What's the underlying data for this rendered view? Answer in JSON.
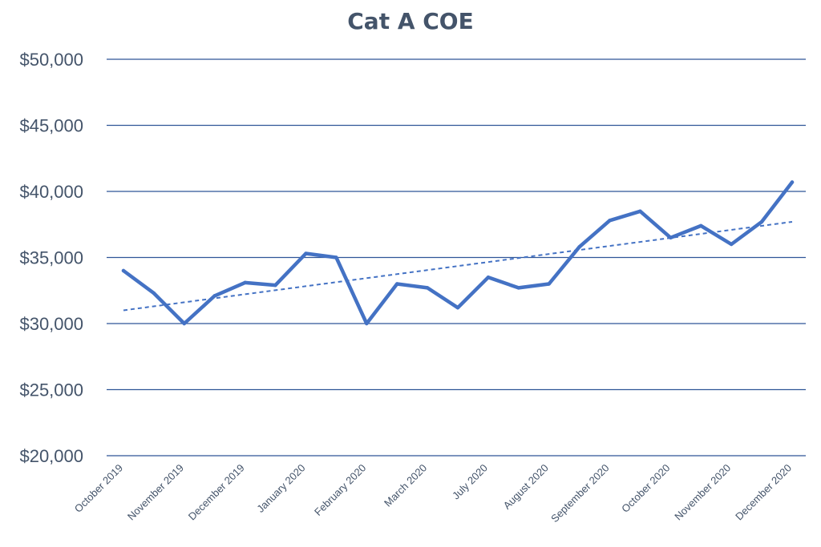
{
  "chart_data": {
    "type": "line",
    "title": "Cat A COE",
    "xlabel": "",
    "ylabel": "",
    "ylim": [
      20000,
      50000
    ],
    "yticks": [
      20000,
      25000,
      30000,
      35000,
      40000,
      45000,
      50000
    ],
    "ytick_labels": [
      "$20,000",
      "$25,000",
      "$30,000",
      "$35,000",
      "$40,000",
      "$45,000",
      "$50,000"
    ],
    "x_tick_labels": [
      "October 2019",
      "November 2019",
      "December 2019",
      "January 2020",
      "February 2020",
      "March 2020",
      "July 2020",
      "August 2020",
      "September 2020",
      "October 2020",
      "November 2020",
      "December 2020"
    ],
    "grid": true,
    "legend": "none",
    "colors": {
      "line": "#4472c4",
      "grid": "#2f5597",
      "text": "#44546a"
    },
    "series": [
      {
        "values": [
          34000,
          32300,
          30000,
          32100,
          33100,
          32900,
          35300,
          35000,
          30000,
          33000,
          32700,
          31200,
          33500,
          32700,
          33000,
          35800,
          37800,
          38500,
          36500,
          37400,
          36000,
          37700,
          40700
        ]
      }
    ],
    "trendline": {
      "style": "dashed",
      "start": 31000,
      "end": 37700
    }
  }
}
